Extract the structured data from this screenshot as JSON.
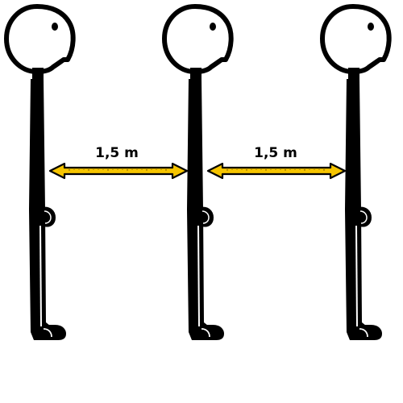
{
  "scene": {
    "figures": [
      {
        "name": "person-left"
      },
      {
        "name": "person-middle"
      },
      {
        "name": "person-right"
      }
    ],
    "distances": [
      {
        "label": "1,5 m"
      },
      {
        "label": "1,5 m"
      }
    ],
    "colors": {
      "figure": "#000000",
      "background": "#ffffff",
      "arrow_fill": "#f5c400",
      "arrow_outline": "#000000"
    }
  }
}
